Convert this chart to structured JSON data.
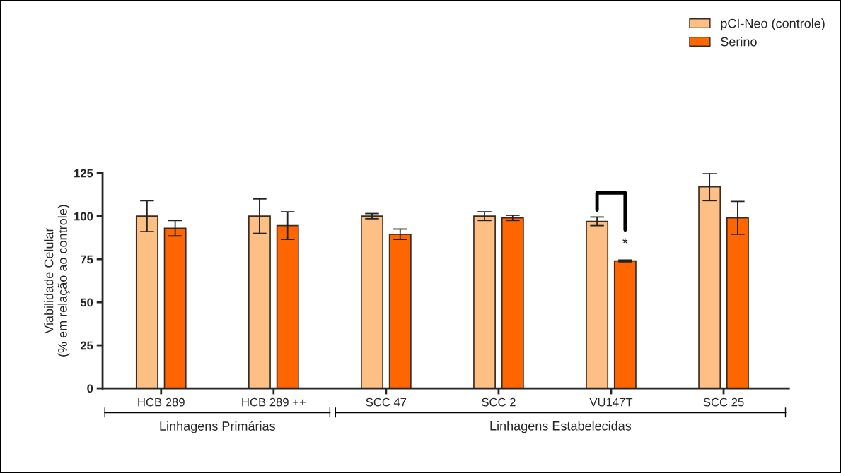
{
  "chart_data": {
    "type": "bar",
    "ylabel": "Viabilidade Celular\n(% em relação ao controle)",
    "categories": [
      "HCB 289",
      "HCB 289 ++",
      "SCC 47",
      "SCC 2",
      "VU147T",
      "SCC 25"
    ],
    "series": [
      {
        "name": "pCI-Neo (controle)",
        "color": "#fdbf84",
        "values": [
          100,
          100,
          100,
          100,
          97,
          117
        ],
        "errors": [
          9,
          10,
          1.5,
          2.5,
          2.5,
          8
        ]
      },
      {
        "name": "Serino",
        "color": "#ff6600",
        "values": [
          93,
          94.5,
          89.5,
          99,
          74,
          99
        ],
        "errors": [
          4.5,
          8,
          3,
          1.5,
          0.5,
          9.5
        ]
      }
    ],
    "ylim": [
      0,
      125
    ],
    "yticks": [
      0,
      25,
      50,
      75,
      100,
      125
    ],
    "grid": false,
    "legend": "top right",
    "annotations": [
      {
        "text": "*",
        "x": "VU147T",
        "y": 80
      },
      "Linhagens Primárias",
      "Linhagens Estabelecidas"
    ]
  }
}
